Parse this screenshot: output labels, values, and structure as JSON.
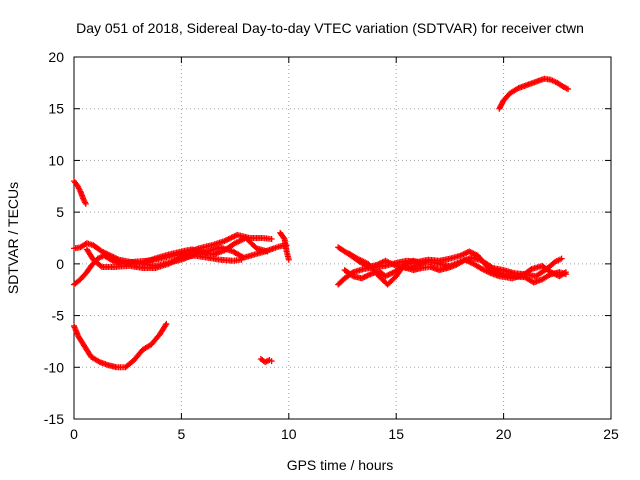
{
  "chart_data": {
    "type": "scatter",
    "title": "Day 051 of 2018, Sidereal Day-to-day VTEC variation (SDTVAR) for receiver ctwn",
    "xlabel": "GPS time / hours",
    "ylabel": "SDTVAR / TECUs",
    "xlim": [
      0,
      25
    ],
    "ylim": [
      -15,
      20
    ],
    "xticks": [
      0,
      5,
      10,
      15,
      20,
      25
    ],
    "yticks": [
      -15,
      -10,
      -5,
      0,
      5,
      10,
      15,
      20
    ],
    "xtick_labels": [
      "0",
      "5",
      "10",
      "15",
      "20",
      "25"
    ],
    "ytick_labels": [
      "-15",
      "-10",
      "-5",
      "0",
      "5",
      "10",
      "15",
      "20"
    ],
    "grid": true,
    "marker": "+",
    "series": [
      {
        "name": "ctwn",
        "color": "#ff0000",
        "segments": [
          [
            [
              0.0,
              8.0
            ],
            [
              0.15,
              7.6
            ],
            [
              0.3,
              7.0
            ],
            [
              0.45,
              6.2
            ],
            [
              0.55,
              5.8
            ]
          ],
          [
            [
              0.0,
              -6.0
            ],
            [
              0.2,
              -7.0
            ],
            [
              0.5,
              -8.0
            ],
            [
              0.8,
              -9.0
            ],
            [
              1.2,
              -9.5
            ],
            [
              1.6,
              -9.8
            ],
            [
              2.0,
              -10.0
            ],
            [
              2.4,
              -10.0
            ],
            [
              2.8,
              -9.3
            ],
            [
              3.2,
              -8.3
            ],
            [
              3.6,
              -7.8
            ],
            [
              4.0,
              -6.8
            ],
            [
              4.3,
              -5.8
            ]
          ],
          [
            [
              0.0,
              -2.0
            ],
            [
              0.3,
              -1.5
            ],
            [
              0.6,
              -0.8
            ],
            [
              0.8,
              -0.2
            ],
            [
              1.1,
              0.5
            ],
            [
              1.4,
              0.8
            ],
            [
              1.8,
              0.3
            ],
            [
              2.2,
              0.0
            ],
            [
              2.8,
              0.2
            ],
            [
              3.4,
              0.3
            ],
            [
              4.0,
              0.5
            ],
            [
              4.6,
              0.8
            ],
            [
              5.2,
              1.0
            ],
            [
              5.8,
              1.5
            ],
            [
              6.4,
              1.8
            ],
            [
              7.0,
              2.2
            ],
            [
              7.6,
              2.8
            ],
            [
              8.2,
              2.5
            ],
            [
              8.8,
              2.5
            ],
            [
              9.2,
              2.4
            ]
          ],
          [
            [
              0.0,
              1.5
            ],
            [
              0.3,
              1.6
            ],
            [
              0.6,
              2.0
            ],
            [
              0.9,
              1.8
            ],
            [
              1.3,
              1.2
            ],
            [
              1.7,
              0.8
            ],
            [
              2.1,
              0.4
            ],
            [
              2.6,
              0.2
            ],
            [
              3.2,
              0.0
            ],
            [
              3.8,
              -0.2
            ],
            [
              4.4,
              0.1
            ],
            [
              5.0,
              0.4
            ],
            [
              5.6,
              0.9
            ],
            [
              6.2,
              1.2
            ],
            [
              6.8,
              1.6
            ],
            [
              7.4,
              1.2
            ],
            [
              7.9,
              0.6
            ],
            [
              8.4,
              0.9
            ],
            [
              8.9,
              1.2
            ],
            [
              9.3,
              1.5
            ],
            [
              9.6,
              1.7
            ],
            [
              9.9,
              1.8
            ]
          ],
          [
            [
              0.6,
              1.4
            ],
            [
              0.9,
              0.4
            ],
            [
              1.3,
              -0.3
            ],
            [
              1.9,
              -0.3
            ],
            [
              2.6,
              -0.2
            ],
            [
              3.2,
              -0.4
            ],
            [
              3.8,
              -0.4
            ],
            [
              4.4,
              0.0
            ],
            [
              5.0,
              0.6
            ],
            [
              5.6,
              0.8
            ],
            [
              6.2,
              0.6
            ],
            [
              6.8,
              0.4
            ],
            [
              7.4,
              0.3
            ],
            [
              7.8,
              0.4
            ]
          ],
          [
            [
              3.3,
              0.2
            ],
            [
              3.9,
              0.6
            ],
            [
              4.4,
              0.9
            ],
            [
              5.0,
              1.2
            ],
            [
              5.5,
              1.4
            ],
            [
              6.0,
              1.1
            ],
            [
              6.5,
              0.9
            ],
            [
              7.0,
              1.3
            ],
            [
              7.5,
              2.0
            ],
            [
              8.0,
              2.5
            ],
            [
              8.5,
              1.5
            ],
            [
              9.0,
              1.2
            ]
          ],
          [
            [
              9.6,
              3.0
            ],
            [
              9.8,
              2.4
            ],
            [
              9.9,
              1.2
            ],
            [
              10.0,
              0.4
            ]
          ],
          [
            [
              8.7,
              -9.2
            ],
            [
              8.9,
              -9.5
            ],
            [
              9.1,
              -9.3
            ],
            [
              9.2,
              -9.4
            ]
          ],
          [
            [
              12.3,
              -2.0
            ],
            [
              12.6,
              -1.4
            ],
            [
              13.0,
              -0.8
            ],
            [
              13.5,
              -0.5
            ],
            [
              14.0,
              -0.3
            ],
            [
              14.5,
              -0.2
            ],
            [
              15.0,
              0.1
            ],
            [
              15.5,
              0.3
            ],
            [
              16.0,
              0.2
            ],
            [
              16.5,
              0.4
            ],
            [
              17.0,
              0.3
            ],
            [
              17.5,
              0.5
            ],
            [
              18.0,
              0.8
            ],
            [
              18.4,
              1.2
            ],
            [
              18.8,
              0.8
            ],
            [
              19.2,
              -0.2
            ],
            [
              19.6,
              -0.8
            ],
            [
              20.0,
              -1.0
            ],
            [
              20.5,
              -1.2
            ],
            [
              21.0,
              -1.3
            ],
            [
              21.4,
              -1.8
            ],
            [
              21.8,
              -1.5
            ],
            [
              22.2,
              -1.0
            ],
            [
              22.6,
              -0.8
            ],
            [
              22.9,
              -1.0
            ]
          ],
          [
            [
              12.3,
              1.6
            ],
            [
              12.6,
              1.2
            ],
            [
              12.9,
              0.8
            ],
            [
              13.3,
              0.2
            ],
            [
              13.7,
              -0.3
            ],
            [
              14.1,
              -0.1
            ],
            [
              14.5,
              0.3
            ],
            [
              15.0,
              -0.2
            ],
            [
              15.5,
              -0.4
            ],
            [
              16.0,
              -0.1
            ],
            [
              16.5,
              0.2
            ],
            [
              17.0,
              0.0
            ],
            [
              17.5,
              -0.2
            ],
            [
              18.0,
              0.2
            ],
            [
              18.5,
              0.6
            ],
            [
              19.0,
              0.3
            ],
            [
              19.5,
              -0.4
            ],
            [
              20.0,
              -0.6
            ],
            [
              20.5,
              -0.9
            ],
            [
              21.0,
              -1.0
            ],
            [
              21.5,
              -1.2
            ],
            [
              22.0,
              -0.5
            ],
            [
              22.4,
              0.2
            ],
            [
              22.7,
              0.5
            ]
          ],
          [
            [
              12.6,
              -0.6
            ],
            [
              13.0,
              -1.2
            ],
            [
              13.4,
              -1.4
            ],
            [
              13.8,
              -1.0
            ],
            [
              14.2,
              -0.7
            ],
            [
              14.5,
              -1.2
            ],
            [
              14.9,
              -0.8
            ],
            [
              15.3,
              -0.3
            ],
            [
              15.8,
              -0.6
            ],
            [
              16.2,
              -0.4
            ],
            [
              16.6,
              -0.3
            ],
            [
              17.0,
              -0.6
            ],
            [
              17.4,
              -0.4
            ],
            [
              17.8,
              -0.1
            ],
            [
              18.2,
              0.4
            ],
            [
              18.6,
              0.0
            ],
            [
              19.0,
              -0.5
            ],
            [
              19.4,
              -0.9
            ],
            [
              19.8,
              -1.2
            ],
            [
              20.4,
              -1.4
            ],
            [
              20.9,
              -1.1
            ],
            [
              21.3,
              -0.5
            ],
            [
              21.8,
              -0.2
            ],
            [
              22.2,
              -0.8
            ],
            [
              22.6,
              -1.2
            ],
            [
              22.9,
              -0.8
            ]
          ],
          [
            [
              12.8,
              1.0
            ],
            [
              13.2,
              0.5
            ],
            [
              13.7,
              0.0
            ],
            [
              14.2,
              -1.2
            ],
            [
              14.6,
              -2.0
            ],
            [
              15.0,
              -1.2
            ],
            [
              15.4,
              0.0
            ],
            [
              15.8,
              0.3
            ],
            [
              16.2,
              0.0
            ]
          ],
          [
            [
              19.8,
              15.0
            ],
            [
              20.0,
              15.8
            ],
            [
              20.3,
              16.5
            ],
            [
              20.7,
              17.0
            ],
            [
              21.1,
              17.3
            ],
            [
              21.5,
              17.6
            ],
            [
              21.9,
              17.9
            ],
            [
              22.2,
              17.8
            ],
            [
              22.5,
              17.5
            ],
            [
              22.8,
              17.1
            ],
            [
              23.0,
              16.9
            ]
          ]
        ]
      }
    ]
  }
}
